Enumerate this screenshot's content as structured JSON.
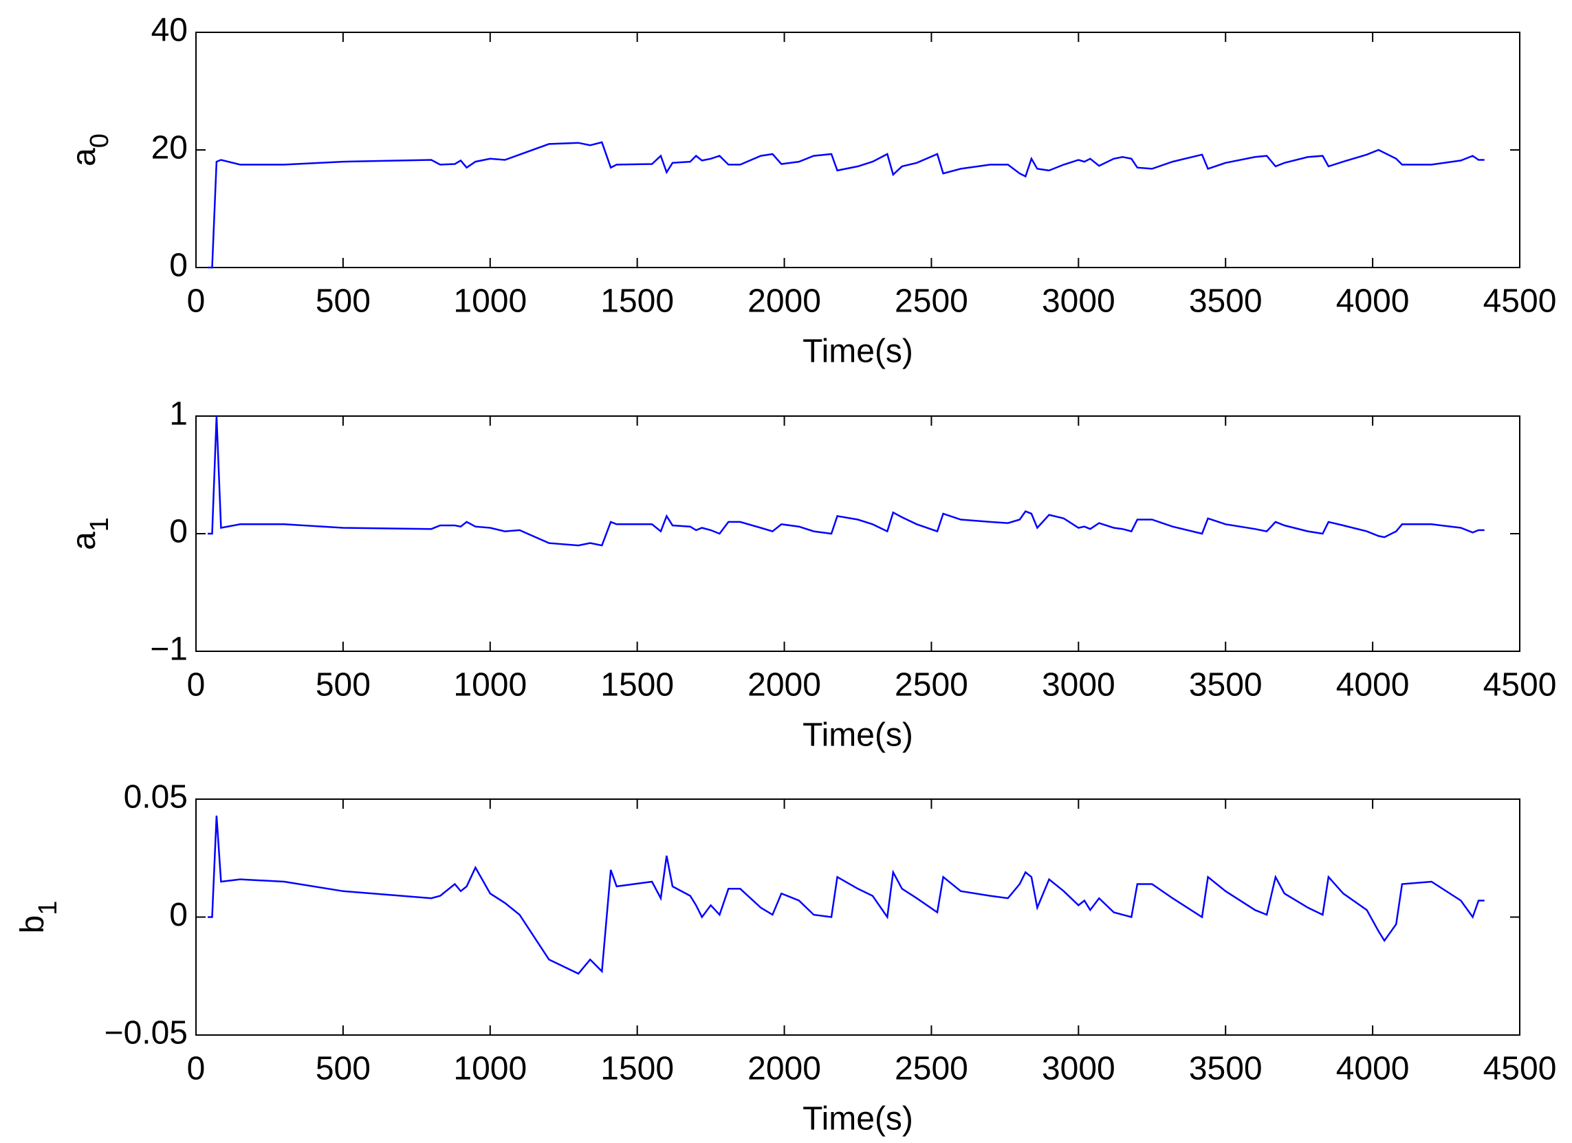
{
  "chart_data": [
    {
      "type": "line",
      "xlabel": "Time(s)",
      "ylabel": {
        "base": "a",
        "sub": "0"
      },
      "xlim": [
        0,
        4500
      ],
      "xticks": [
        0,
        500,
        1000,
        1500,
        2000,
        2500,
        3000,
        3500,
        4000,
        4500
      ],
      "ylim": [
        0,
        40
      ],
      "yticks": [
        0,
        20,
        40
      ],
      "x": [
        40,
        55,
        70,
        85,
        150,
        300,
        500,
        800,
        830,
        880,
        900,
        920,
        950,
        1000,
        1050,
        1100,
        1200,
        1300,
        1340,
        1380,
        1410,
        1430,
        1550,
        1580,
        1600,
        1620,
        1680,
        1700,
        1720,
        1750,
        1780,
        1810,
        1850,
        1920,
        1960,
        1990,
        2050,
        2100,
        2160,
        2180,
        2250,
        2300,
        2350,
        2370,
        2400,
        2450,
        2520,
        2540,
        2600,
        2700,
        2760,
        2800,
        2820,
        2840,
        2860,
        2900,
        2950,
        3000,
        3020,
        3040,
        3070,
        3120,
        3150,
        3180,
        3200,
        3250,
        3320,
        3420,
        3440,
        3500,
        3600,
        3640,
        3670,
        3700,
        3780,
        3830,
        3850,
        3900,
        3980,
        4020,
        4040,
        4080,
        4100,
        4200,
        4300,
        4340,
        4360,
        4380
      ],
      "color": "#0000ff",
      "values": [
        0,
        0,
        18,
        18.3,
        17.5,
        17.5,
        18,
        18.3,
        17.5,
        17.6,
        18.2,
        17,
        18,
        18.5,
        18.3,
        19.2,
        21,
        21.2,
        20.8,
        21.3,
        17,
        17.5,
        17.6,
        19,
        16.2,
        17.8,
        18,
        19,
        18.2,
        18.5,
        19,
        17.5,
        17.5,
        19,
        19.3,
        17.6,
        18,
        19,
        19.3,
        16.5,
        17.2,
        18,
        19.3,
        15.8,
        17.2,
        17.8,
        19.3,
        16,
        16.8,
        17.5,
        17.5,
        16,
        15.5,
        18.5,
        16.8,
        16.5,
        17.5,
        18.3,
        18,
        18.5,
        17.3,
        18.5,
        18.8,
        18.5,
        17,
        16.8,
        18,
        19.2,
        16.8,
        17.8,
        18.8,
        19,
        17.2,
        17.8,
        18.8,
        19,
        17.2,
        18,
        19.2,
        20,
        19.5,
        18.5,
        17.5,
        17.5,
        18.2,
        19,
        18.3,
        18.3
      ]
    },
    {
      "type": "line",
      "xlabel": "Time(s)",
      "ylabel": {
        "base": "a",
        "sub": "1"
      },
      "xlim": [
        0,
        4500
      ],
      "xticks": [
        0,
        500,
        1000,
        1500,
        2000,
        2500,
        3000,
        3500,
        4000,
        4500
      ],
      "ylim": [
        -1,
        1
      ],
      "yticks": [
        {
          "value": -1,
          "label": "−1"
        },
        0,
        1
      ],
      "x": [
        40,
        55,
        70,
        85,
        150,
        300,
        500,
        800,
        830,
        880,
        900,
        920,
        950,
        1000,
        1050,
        1100,
        1200,
        1300,
        1340,
        1380,
        1410,
        1430,
        1550,
        1580,
        1600,
        1620,
        1680,
        1700,
        1720,
        1750,
        1780,
        1810,
        1850,
        1920,
        1960,
        1990,
        2050,
        2100,
        2160,
        2180,
        2250,
        2300,
        2350,
        2370,
        2400,
        2450,
        2520,
        2540,
        2600,
        2700,
        2760,
        2800,
        2820,
        2840,
        2860,
        2900,
        2950,
        3000,
        3020,
        3040,
        3070,
        3120,
        3150,
        3180,
        3200,
        3250,
        3320,
        3420,
        3440,
        3500,
        3600,
        3640,
        3670,
        3700,
        3780,
        3830,
        3850,
        3900,
        3980,
        4020,
        4040,
        4080,
        4100,
        4200,
        4300,
        4340,
        4360,
        4380
      ],
      "color": "#0000ff",
      "values": [
        0,
        0,
        1,
        0.05,
        0.08,
        0.08,
        0.05,
        0.04,
        0.07,
        0.07,
        0.06,
        0.1,
        0.06,
        0.05,
        0.02,
        0.03,
        -0.08,
        -0.1,
        -0.08,
        -0.1,
        0.1,
        0.08,
        0.08,
        0.02,
        0.15,
        0.07,
        0.06,
        0.03,
        0.05,
        0.03,
        0,
        0.1,
        0.1,
        0.05,
        0.02,
        0.08,
        0.06,
        0.02,
        0,
        0.15,
        0.12,
        0.08,
        0.02,
        0.18,
        0.14,
        0.08,
        0.02,
        0.17,
        0.12,
        0.1,
        0.09,
        0.12,
        0.19,
        0.17,
        0.05,
        0.16,
        0.13,
        0.05,
        0.06,
        0.04,
        0.09,
        0.05,
        0.04,
        0.02,
        0.12,
        0.12,
        0.06,
        0,
        0.13,
        0.08,
        0.04,
        0.02,
        0.1,
        0.07,
        0.02,
        0,
        0.1,
        0.07,
        0.02,
        -0.02,
        -0.03,
        0.02,
        0.08,
        0.08,
        0.05,
        0.01,
        0.03,
        0.03
      ]
    },
    {
      "type": "line",
      "xlabel": "Time(s)",
      "ylabel": {
        "base": "b",
        "sub": "1"
      },
      "xlim": [
        0,
        4500
      ],
      "xticks": [
        0,
        500,
        1000,
        1500,
        2000,
        2500,
        3000,
        3500,
        4000,
        4500
      ],
      "ylim": [
        -0.05,
        0.05
      ],
      "yticks": [
        {
          "value": -0.05,
          "label": "−0.05"
        },
        0,
        0.05
      ],
      "x": [
        40,
        55,
        70,
        85,
        150,
        300,
        500,
        800,
        830,
        880,
        900,
        920,
        950,
        1000,
        1050,
        1100,
        1200,
        1300,
        1340,
        1380,
        1410,
        1430,
        1550,
        1580,
        1600,
        1620,
        1680,
        1700,
        1720,
        1750,
        1780,
        1810,
        1850,
        1920,
        1960,
        1990,
        2050,
        2100,
        2160,
        2180,
        2250,
        2300,
        2350,
        2370,
        2400,
        2450,
        2520,
        2540,
        2600,
        2700,
        2760,
        2800,
        2820,
        2840,
        2860,
        2900,
        2950,
        3000,
        3020,
        3040,
        3070,
        3120,
        3150,
        3180,
        3200,
        3250,
        3320,
        3420,
        3440,
        3500,
        3600,
        3640,
        3670,
        3700,
        3780,
        3830,
        3850,
        3900,
        3980,
        4020,
        4040,
        4080,
        4100,
        4200,
        4300,
        4340,
        4360,
        4380
      ],
      "color": "#0000ff",
      "values": [
        0,
        0,
        0.043,
        0.015,
        0.016,
        0.015,
        0.011,
        0.008,
        0.009,
        0.014,
        0.011,
        0.013,
        0.021,
        0.01,
        0.006,
        0.001,
        -0.018,
        -0.024,
        -0.018,
        -0.023,
        0.02,
        0.013,
        0.015,
        0.008,
        0.026,
        0.013,
        0.009,
        0.005,
        0,
        0.005,
        0.001,
        0.012,
        0.012,
        0.004,
        0.001,
        0.01,
        0.007,
        0.001,
        0,
        0.017,
        0.012,
        0.009,
        0,
        0.019,
        0.012,
        0.008,
        0.002,
        0.017,
        0.011,
        0.009,
        0.008,
        0.014,
        0.019,
        0.017,
        0.004,
        0.016,
        0.011,
        0.005,
        0.007,
        0.003,
        0.008,
        0.002,
        0.001,
        0,
        0.014,
        0.014,
        0.008,
        0,
        0.017,
        0.011,
        0.003,
        0.001,
        0.017,
        0.01,
        0.004,
        0.001,
        0.017,
        0.01,
        0.003,
        -0.006,
        -0.01,
        -0.003,
        0.014,
        0.015,
        0.007,
        0,
        0.007,
        0.007
      ]
    }
  ]
}
